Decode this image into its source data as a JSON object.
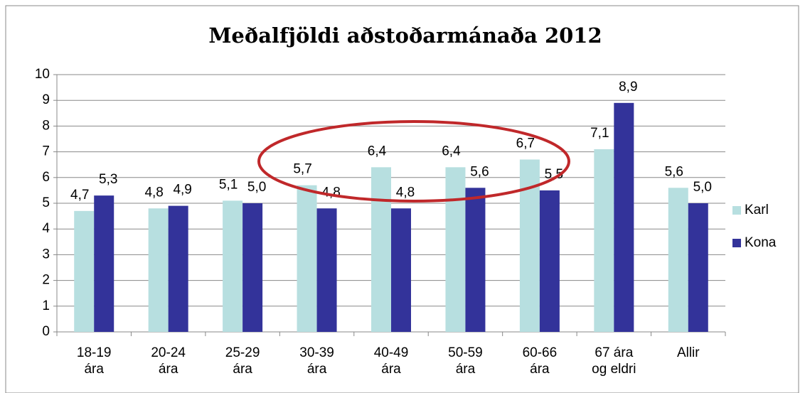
{
  "chart_data": {
    "type": "bar",
    "title": "Meðalfjöldi aðstoðarmánaða 2012",
    "categories": [
      [
        "18-19",
        "ára"
      ],
      [
        "20-24",
        "ára"
      ],
      [
        "25-29",
        "ára"
      ],
      [
        "30-39",
        "ára"
      ],
      [
        "40-49",
        "ára"
      ],
      [
        "50-59",
        "ára"
      ],
      [
        "60-66",
        "ára"
      ],
      [
        "67 ára",
        "og eldri"
      ],
      [
        "Allir"
      ]
    ],
    "series": [
      {
        "name": "Karl",
        "color": "#b7dfe0",
        "values": [
          4.7,
          4.8,
          5.1,
          5.7,
          6.4,
          6.4,
          6.7,
          7.1,
          5.6
        ],
        "value_labels": [
          "4,7",
          "4,8",
          "5,1",
          "5,7",
          "6,4",
          "6,4",
          "6,7",
          "7,1",
          "5,6"
        ]
      },
      {
        "name": "Kona",
        "color": "#33339a",
        "values": [
          5.3,
          4.9,
          5.0,
          4.8,
          4.8,
          5.6,
          5.5,
          8.9,
          5.0
        ],
        "value_labels": [
          "5,3",
          "4,9",
          "5,0",
          "4,8",
          "4,8",
          "5,6",
          "5,5",
          "8,9",
          "5,0"
        ]
      }
    ],
    "ylim": [
      0,
      10
    ],
    "yticks": [
      0,
      1,
      2,
      3,
      4,
      5,
      6,
      7,
      8,
      9,
      10
    ],
    "grid": true,
    "legend": "right"
  }
}
